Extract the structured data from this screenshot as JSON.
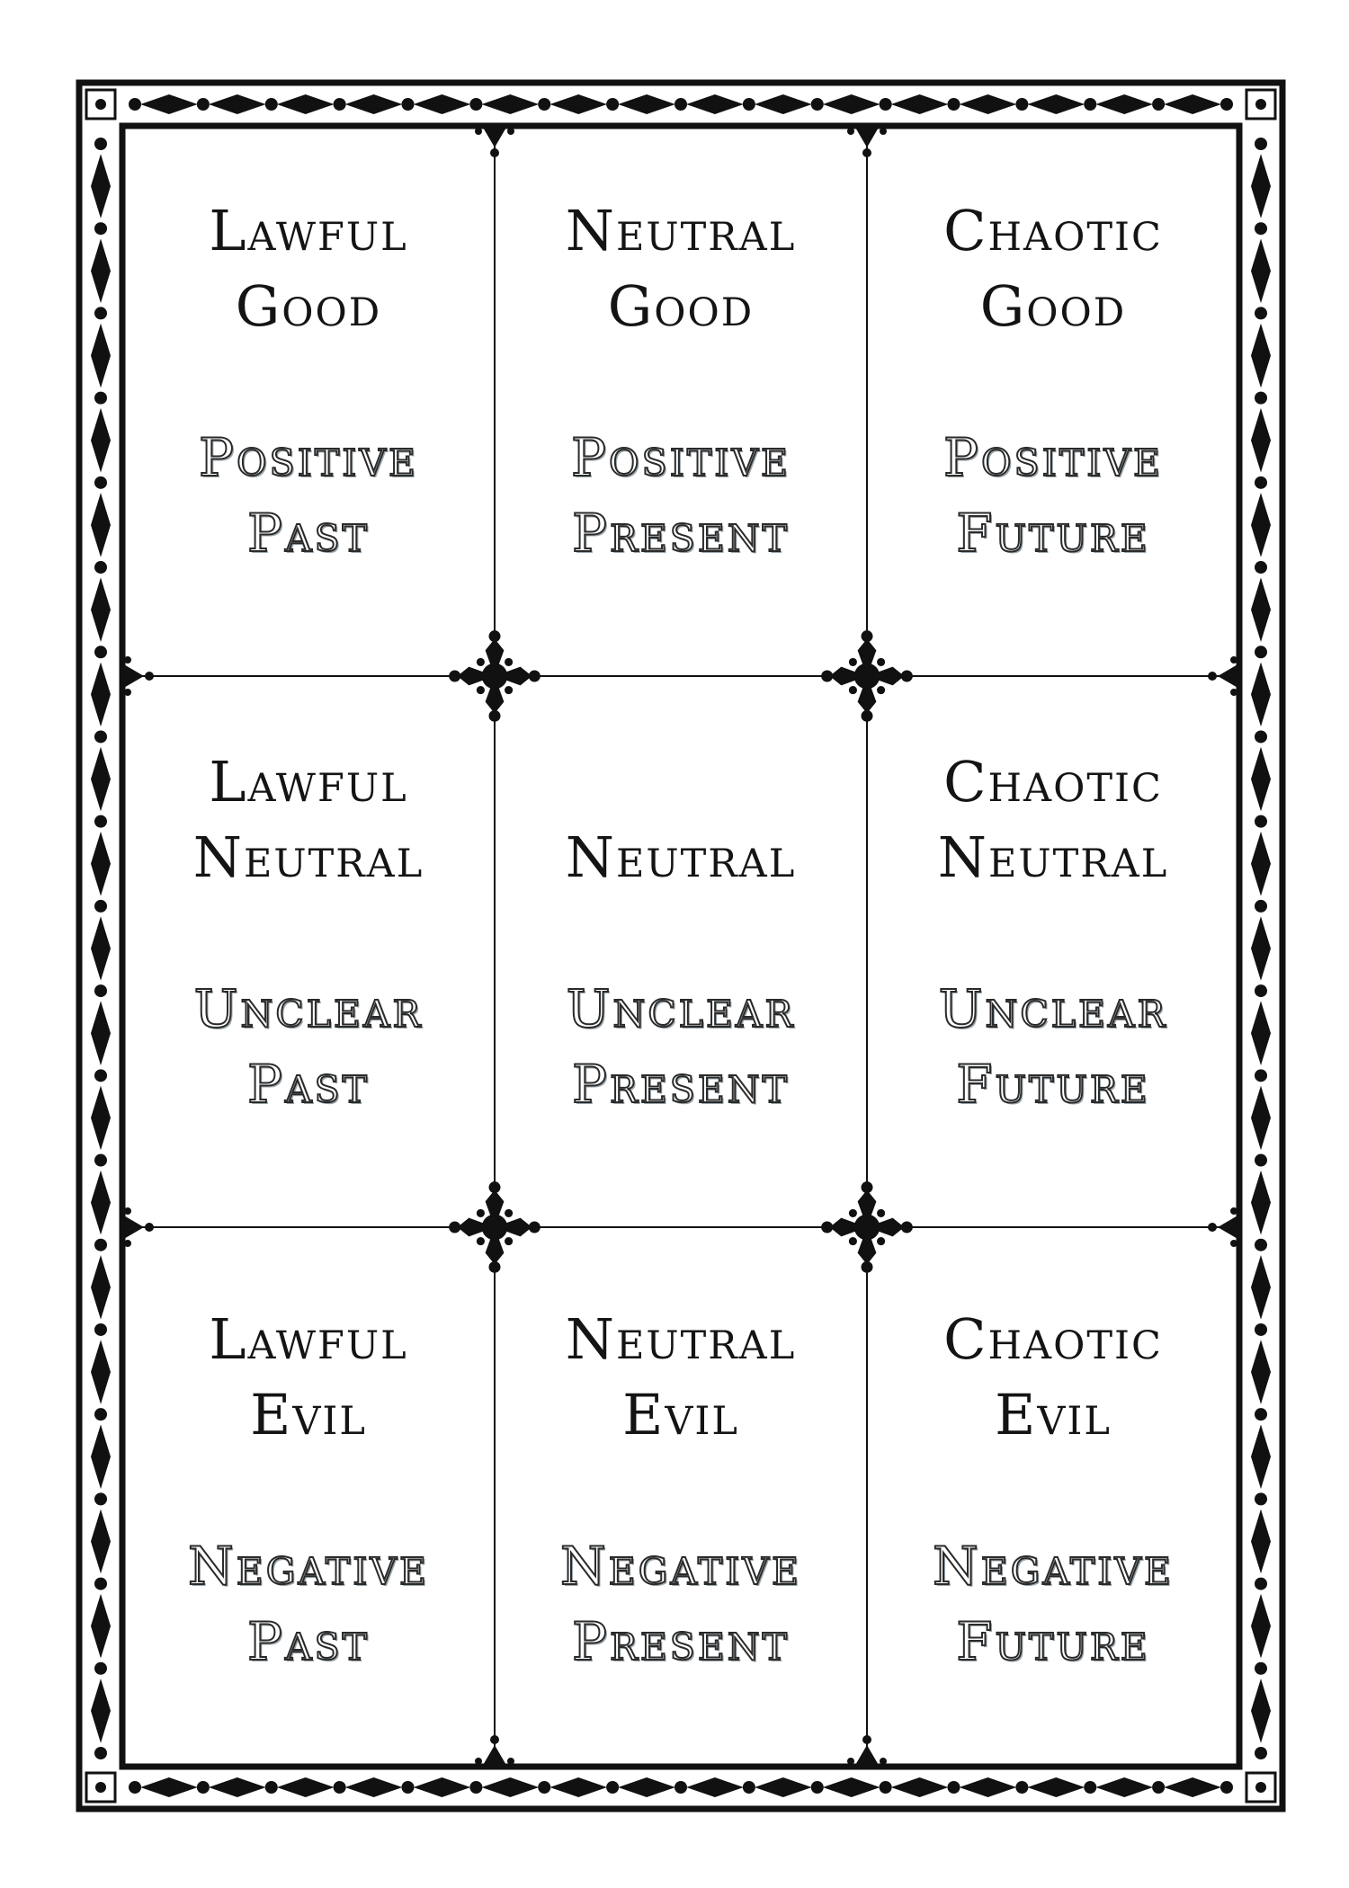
{
  "grid": [
    {
      "alignment": [
        "Lawful",
        "Good"
      ],
      "reading": [
        "Positive",
        "Past"
      ]
    },
    {
      "alignment": [
        "Neutral",
        "Good"
      ],
      "reading": [
        "Positive",
        "Present"
      ]
    },
    {
      "alignment": [
        "Chaotic",
        "Good"
      ],
      "reading": [
        "Positive",
        "Future"
      ]
    },
    {
      "alignment": [
        "Lawful",
        "Neutral"
      ],
      "reading": [
        "Unclear",
        "Past"
      ]
    },
    {
      "alignment": [
        "",
        "Neutral"
      ],
      "reading": [
        "Unclear",
        "Present"
      ]
    },
    {
      "alignment": [
        "Chaotic",
        "Neutral"
      ],
      "reading": [
        "Unclear",
        "Future"
      ]
    },
    {
      "alignment": [
        "Lawful",
        "Evil"
      ],
      "reading": [
        "Negative",
        "Past"
      ]
    },
    {
      "alignment": [
        "Neutral",
        "Evil"
      ],
      "reading": [
        "Negative",
        "Present"
      ]
    },
    {
      "alignment": [
        "Chaotic",
        "Evil"
      ],
      "reading": [
        "Negative",
        "Future"
      ]
    }
  ],
  "colors": {
    "ink": "#141414",
    "outline_shadow": "#9aa6ad",
    "background": "#ffffff"
  },
  "icons": {
    "border_motif": "diamond-and-dot-icon",
    "junction": "fleur-cross-icon"
  }
}
